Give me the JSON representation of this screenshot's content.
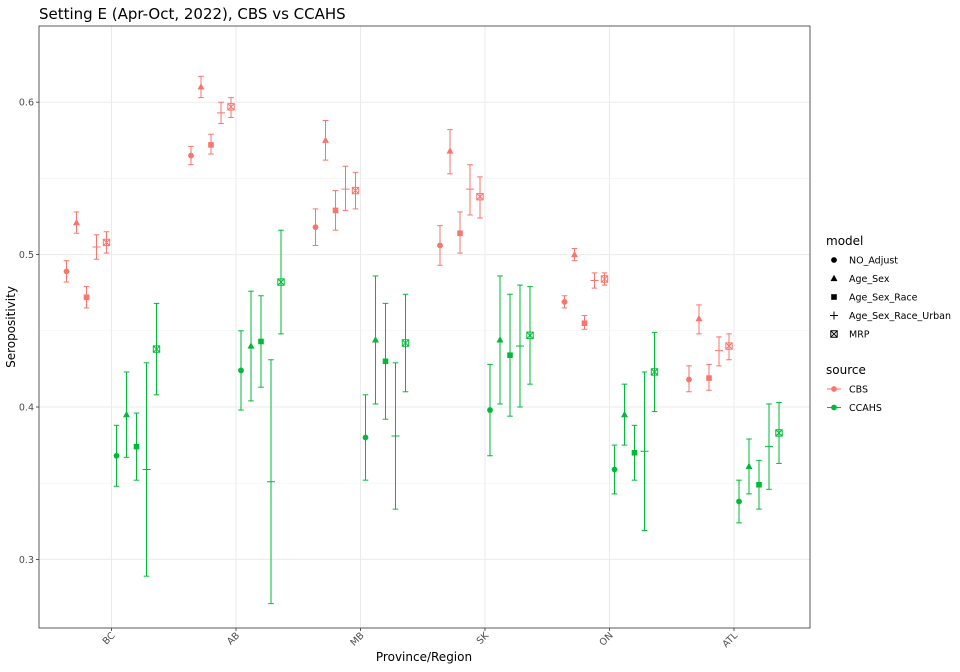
{
  "chart_data": {
    "type": "scatter",
    "title": "Setting E (Apr-Oct, 2022), CBS vs CCAHS",
    "xlabel": "Province/Region",
    "ylabel": "Seropositivity",
    "ylim": [
      0.255,
      0.65
    ],
    "yticks": [
      0.3,
      0.4,
      0.5,
      0.6
    ],
    "ytick_labels": [
      "0.3",
      "0.4",
      "0.5",
      "0.6"
    ],
    "categories": [
      "BC",
      "AB",
      "MB",
      "SK",
      "ON",
      "ATL"
    ],
    "grid": true,
    "legend_position": "right",
    "legend": {
      "model_title": "model",
      "models": [
        "NO_Adjust",
        "Age_Sex",
        "Age_Sex_Race",
        "Age_Sex_Race_Urban",
        "MRP"
      ],
      "model_shapes": [
        "circle",
        "triangle",
        "square",
        "plus",
        "boxtimes"
      ],
      "source_title": "source",
      "sources": [
        "CBS",
        "CCAHS"
      ],
      "source_colors": [
        "#F8766D",
        "#00BA38"
      ]
    },
    "series": [
      {
        "name": "CBS",
        "model": "NO_Adjust",
        "values": [
          [
            0.489,
            0.482,
            0.496
          ],
          [
            0.565,
            0.559,
            0.571
          ],
          [
            0.518,
            0.506,
            0.53
          ],
          [
            0.506,
            0.493,
            0.519
          ],
          [
            0.469,
            0.465,
            0.473
          ],
          [
            0.418,
            0.41,
            0.427
          ]
        ]
      },
      {
        "name": "CBS",
        "model": "Age_Sex",
        "values": [
          [
            0.521,
            0.514,
            0.528
          ],
          [
            0.61,
            0.603,
            0.617
          ],
          [
            0.575,
            0.562,
            0.588
          ],
          [
            0.568,
            0.553,
            0.582
          ],
          [
            0.5,
            0.496,
            0.504
          ],
          [
            0.458,
            0.448,
            0.467
          ]
        ]
      },
      {
        "name": "CBS",
        "model": "Age_Sex_Race",
        "values": [
          [
            0.472,
            0.465,
            0.479
          ],
          [
            0.572,
            0.566,
            0.579
          ],
          [
            0.529,
            0.516,
            0.542
          ],
          [
            0.514,
            0.501,
            0.528
          ],
          [
            0.455,
            0.451,
            0.46
          ],
          [
            0.419,
            0.411,
            0.428
          ]
        ]
      },
      {
        "name": "CBS",
        "model": "Age_Sex_Race_Urban",
        "values": [
          [
            0.505,
            0.497,
            0.513
          ],
          [
            0.593,
            0.586,
            0.6
          ],
          [
            0.543,
            0.529,
            0.558
          ],
          [
            0.543,
            0.526,
            0.559
          ],
          [
            0.483,
            0.478,
            0.488
          ],
          [
            0.437,
            0.427,
            0.446
          ]
        ]
      },
      {
        "name": "CBS",
        "model": "MRP",
        "values": [
          [
            0.508,
            0.501,
            0.515
          ],
          [
            0.597,
            0.59,
            0.603
          ],
          [
            0.542,
            0.53,
            0.554
          ],
          [
            0.538,
            0.524,
            0.551
          ],
          [
            0.484,
            0.48,
            0.488
          ],
          [
            0.44,
            0.431,
            0.448
          ]
        ]
      },
      {
        "name": "CCAHS",
        "model": "NO_Adjust",
        "values": [
          [
            0.368,
            0.348,
            0.388
          ],
          [
            0.424,
            0.398,
            0.45
          ],
          [
            0.38,
            0.352,
            0.408
          ],
          [
            0.398,
            0.368,
            0.428
          ],
          [
            0.359,
            0.343,
            0.375
          ],
          [
            0.338,
            0.324,
            0.352
          ]
        ]
      },
      {
        "name": "CCAHS",
        "model": "Age_Sex",
        "values": [
          [
            0.395,
            0.367,
            0.423
          ],
          [
            0.44,
            0.404,
            0.476
          ],
          [
            0.444,
            0.402,
            0.486
          ],
          [
            0.444,
            0.402,
            0.486
          ],
          [
            0.395,
            0.375,
            0.415
          ],
          [
            0.361,
            0.343,
            0.379
          ]
        ]
      },
      {
        "name": "CCAHS",
        "model": "Age_Sex_Race",
        "values": [
          [
            0.374,
            0.352,
            0.396
          ],
          [
            0.443,
            0.413,
            0.473
          ],
          [
            0.43,
            0.392,
            0.468
          ],
          [
            0.434,
            0.394,
            0.474
          ],
          [
            0.37,
            0.352,
            0.388
          ],
          [
            0.349,
            0.333,
            0.365
          ]
        ]
      },
      {
        "name": "CCAHS",
        "model": "Age_Sex_Race_Urban",
        "values": [
          [
            0.359,
            0.289,
            0.429
          ],
          [
            0.351,
            0.271,
            0.431
          ],
          [
            0.381,
            0.333,
            0.429
          ],
          [
            0.44,
            0.4,
            0.48
          ],
          [
            0.371,
            0.319,
            0.423
          ],
          [
            0.374,
            0.346,
            0.402
          ]
        ]
      },
      {
        "name": "CCAHS",
        "model": "MRP",
        "values": [
          [
            0.438,
            0.408,
            0.468
          ],
          [
            0.482,
            0.448,
            0.516
          ],
          [
            0.442,
            0.41,
            0.474
          ],
          [
            0.447,
            0.415,
            0.479
          ],
          [
            0.423,
            0.397,
            0.449
          ],
          [
            0.383,
            0.363,
            0.403
          ]
        ]
      }
    ]
  }
}
